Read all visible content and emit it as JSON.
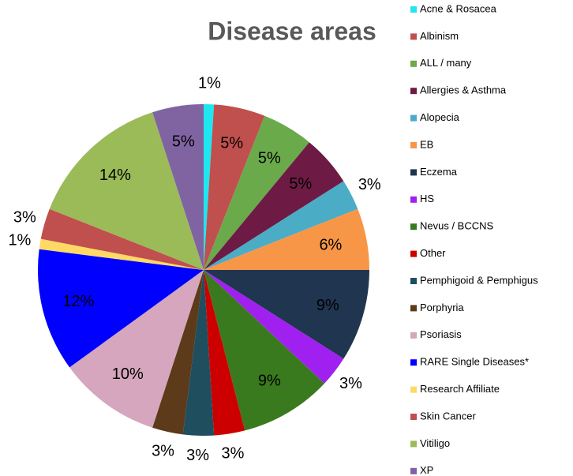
{
  "chart_data": {
    "type": "pie",
    "title": "Disease areas",
    "categories": [
      "Acne & Rosacea",
      "Albinism",
      "ALL / many",
      "Allergies & Asthma",
      "Alopecia",
      "EB",
      "Eczema",
      "HS",
      "Nevus / BCCNS",
      "Other",
      "Pemphigoid & Pemphigus",
      "Porphyria",
      "Psoriasis",
      "RARE Single Diseases*",
      "Research Affiliate",
      "Skin Cancer",
      "Vitiligo",
      "XP"
    ],
    "values": [
      1,
      5,
      5,
      5,
      3,
      6,
      9,
      3,
      9,
      3,
      3,
      3,
      10,
      12,
      1,
      3,
      14,
      5
    ],
    "value_labels": [
      "1%",
      "5%",
      "5%",
      "5%",
      "3%",
      "6%",
      "9%",
      "3%",
      "9%",
      "3%",
      "3%",
      "3%",
      "10%",
      "12%",
      "1%",
      "3%",
      "14%",
      "5%"
    ],
    "colors": [
      "#1fe6f0",
      "#c0504d",
      "#6aaa4b",
      "#6d1b45",
      "#4bacc6",
      "#f79646",
      "#1f3550",
      "#a020f0",
      "#3a7a1e",
      "#cc0000",
      "#1f4e5f",
      "#5c3a1a",
      "#d5a6bd",
      "#0000ff",
      "#ffd966",
      "#c0504d",
      "#9bbb59",
      "#8064a2"
    ],
    "legend": "right"
  }
}
